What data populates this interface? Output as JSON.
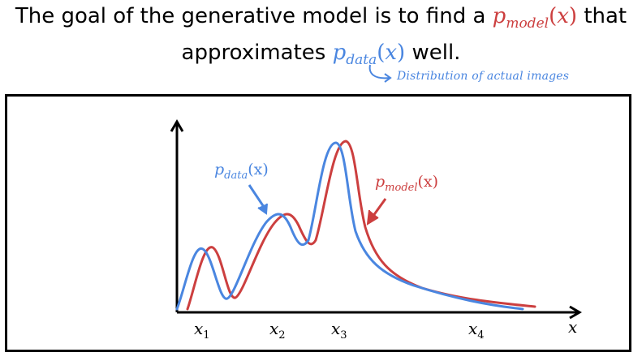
{
  "title": {
    "line1_prefix": "The goal of the generative model is to find a",
    "line1_suffix": "that",
    "line2_prefix": "approximates",
    "line2_suffix": "well."
  },
  "math": {
    "p": "p",
    "model_sub": "model",
    "data_sub": "data",
    "x": "x",
    "lparen": "(",
    "rparen": ")"
  },
  "annotation": "Distribution of actual images",
  "axis": {
    "x_label": "x",
    "ticks": [
      {
        "base": "x",
        "sub": "1"
      },
      {
        "base": "x",
        "sub": "2"
      },
      {
        "base": "x",
        "sub": "3"
      },
      {
        "base": "x",
        "sub": "4"
      }
    ]
  },
  "curves": {
    "data": {
      "label_p": "p",
      "label_sub": "data",
      "label_arg": "(x)",
      "color": "#4a86e0"
    },
    "model": {
      "label_p": "p",
      "label_sub": "model",
      "label_arg": "(x)",
      "color": "#cc3f3f"
    }
  }
}
